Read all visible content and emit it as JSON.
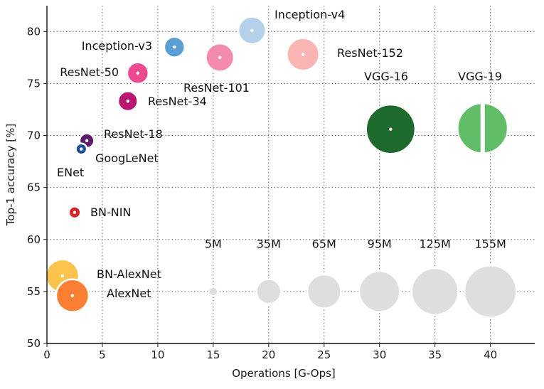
{
  "chart_data": {
    "type": "scatter",
    "title": "",
    "xlabel": "Operations [G-Ops]",
    "ylabel": "Top-1 accuracy [%]",
    "xlim": [
      0,
      44
    ],
    "ylim": [
      50,
      82
    ],
    "x_ticks": [
      "0",
      "5",
      "10",
      "15",
      "20",
      "25",
      "30",
      "35",
      "40"
    ],
    "y_ticks": [
      "50",
      "55",
      "60",
      "65",
      "70",
      "75",
      "80"
    ],
    "grid": true,
    "bubble_size_unit": "parameters (M)",
    "points": [
      {
        "name": "BN-AlexNet",
        "x": 1.4,
        "y": 56.5,
        "params": 62,
        "color": "#fdc44d"
      },
      {
        "name": "AlexNet",
        "x": 2.3,
        "y": 54.6,
        "params": 61,
        "color": "#fb7f33"
      },
      {
        "name": "BN-NIN",
        "x": 2.5,
        "y": 62.6,
        "params": 8,
        "color": "#d9262b"
      },
      {
        "name": "ENet",
        "x": 1.6,
        "y": 68.4,
        "params": 1,
        "color": "#000000"
      },
      {
        "name": "GoogLeNet",
        "x": 3.1,
        "y": 68.7,
        "params": 7,
        "color": "#1d4e98"
      },
      {
        "name": "ResNet-18",
        "x": 3.6,
        "y": 69.5,
        "params": 12,
        "color": "#5c1a6d"
      },
      {
        "name": "ResNet-34",
        "x": 7.3,
        "y": 73.3,
        "params": 22,
        "color": "#b8166f"
      },
      {
        "name": "ResNet-50",
        "x": 8.2,
        "y": 76.0,
        "params": 26,
        "color": "#ee4a90"
      },
      {
        "name": "Inception-v3",
        "x": 11.5,
        "y": 78.5,
        "params": 24,
        "color": "#5a9fd3"
      },
      {
        "name": "ResNet-101",
        "x": 15.6,
        "y": 77.5,
        "params": 45,
        "color": "#f48baa"
      },
      {
        "name": "Inception-v4",
        "x": 18.5,
        "y": 80.1,
        "params": 43,
        "color": "#b4d0ea"
      },
      {
        "name": "ResNet-152",
        "x": 23.1,
        "y": 77.8,
        "params": 60,
        "color": "#f9b5b4"
      },
      {
        "name": "VGG-16",
        "x": 31.0,
        "y": 70.6,
        "params": 138,
        "color": "#1e6a2d"
      },
      {
        "name": "VGG-19",
        "x": 39.3,
        "y": 70.7,
        "params": 144,
        "color": "#62bd69"
      }
    ],
    "size_legend": [
      {
        "label": "5M",
        "x": 15,
        "y": 55,
        "params": 5
      },
      {
        "label": "35M",
        "x": 20,
        "y": 55,
        "params": 35
      },
      {
        "label": "65M",
        "x": 25,
        "y": 55,
        "params": 65
      },
      {
        "label": "95M",
        "x": 30,
        "y": 55,
        "params": 95
      },
      {
        "label": "125M",
        "x": 35,
        "y": 55,
        "params": 125
      },
      {
        "label": "155M",
        "x": 40,
        "y": 55,
        "params": 155
      }
    ],
    "size_legend_color": "#dedede"
  }
}
